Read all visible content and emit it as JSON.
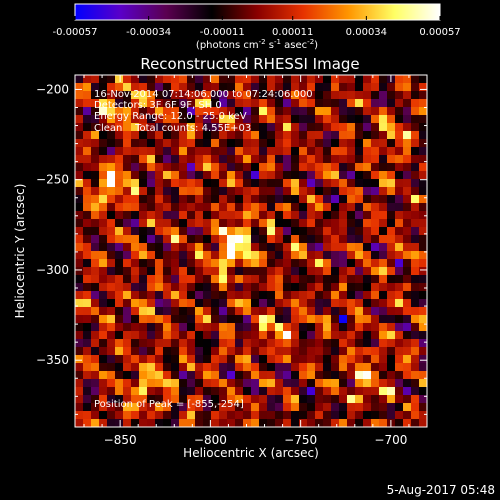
{
  "chart_data": {
    "type": "heatmap",
    "title": "Reconstructed RHESSI Image",
    "xlabel": "Heliocentric X (arcsec)",
    "ylabel": "Heliocentric Y (arcsec)",
    "xlim": [
      -875,
      -680
    ],
    "ylim": [
      -387,
      -192
    ],
    "xticks": [
      -850,
      -800,
      -750,
      -700
    ],
    "yticks": [
      -200,
      -250,
      -300,
      -350
    ],
    "xtick_labels": [
      "−850",
      "−800",
      "−750",
      "−700"
    ],
    "ytick_labels": [
      "−200",
      "−250",
      "−300",
      "−350"
    ],
    "colorbar": {
      "min": -0.00057,
      "max": 0.00057,
      "tick_labels": [
        "-0.00057",
        "-0.00034",
        "-0.00011",
        "0.00011",
        "0.00034",
        "0.00057"
      ],
      "unit_label_parts": [
        "(photons cm",
        "-2",
        " s",
        "-1",
        " asec",
        "-2",
        ")"
      ],
      "stops": [
        "#0000ff",
        "#5a00c8",
        "#5a0050",
        "#000000",
        "#8a0000",
        "#e63200",
        "#ff9600",
        "#ffff64",
        "#ffffff"
      ]
    },
    "annotations": [
      "16-Nov-2014 07:14:06.000 to 07:24:06.000",
      "Detectors: 3F 6F 9F, SH 0",
      "Energy Range: 12.0 - 25.0 keV",
      "Clean    Total counts: 4.55E+03"
    ],
    "peak_label": "Position of Peak = [-855,-254]",
    "peak": {
      "x": -855,
      "y": -254
    },
    "hotspots": [
      {
        "x": -855,
        "y": -254,
        "value": 0.00057
      },
      {
        "x": -790,
        "y": -292,
        "value": 0.00052
      },
      {
        "x": -780,
        "y": -280,
        "value": 0.00048
      },
      {
        "x": -835,
        "y": -365,
        "value": 0.00045
      },
      {
        "x": -845,
        "y": -210,
        "value": 0.0004
      },
      {
        "x": -760,
        "y": -335,
        "value": 0.00038
      },
      {
        "x": -715,
        "y": -360,
        "value": 0.00036
      },
      {
        "x": -700,
        "y": -225,
        "value": 0.00034
      }
    ]
  },
  "footer": {
    "date_label": "5-Aug-2017 05:48"
  }
}
